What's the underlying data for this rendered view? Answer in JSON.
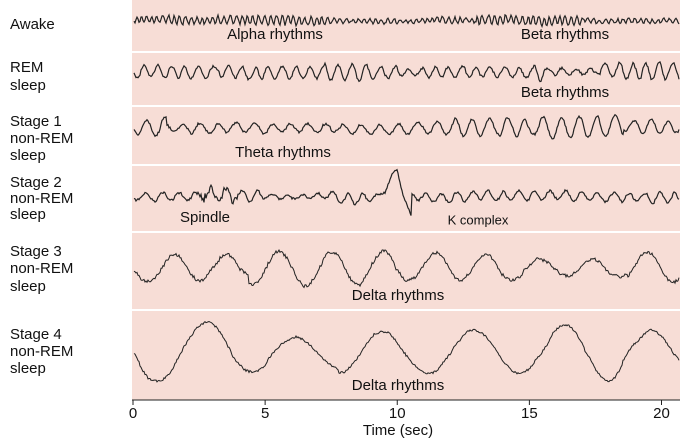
{
  "chart_data": {
    "type": "traces",
    "rows": [
      {
        "label": [
          "Awake"
        ],
        "annotations": [
          "Alpha rhythms",
          "Beta rhythms"
        ]
      },
      {
        "label": [
          "REM",
          "sleep"
        ],
        "annotations": [
          "Beta rhythms"
        ]
      },
      {
        "label": [
          "Stage 1",
          "non-REM",
          "sleep"
        ],
        "annotations": [
          "Theta rhythms"
        ]
      },
      {
        "label": [
          "Stage 2",
          "non-REM",
          "sleep"
        ],
        "annotations": [
          "Spindle",
          "K complex"
        ]
      },
      {
        "label": [
          "Stage 3",
          "non-REM",
          "sleep"
        ],
        "annotations": [
          "Delta rhythms"
        ]
      },
      {
        "label": [
          "Stage 4",
          "non-REM",
          "sleep"
        ],
        "annotations": [
          "Delta rhythms"
        ]
      }
    ],
    "xlabel": "Time (sec)",
    "xlim": [
      0,
      20.7
    ],
    "xticks": [
      0,
      5,
      10,
      15,
      20
    ]
  }
}
